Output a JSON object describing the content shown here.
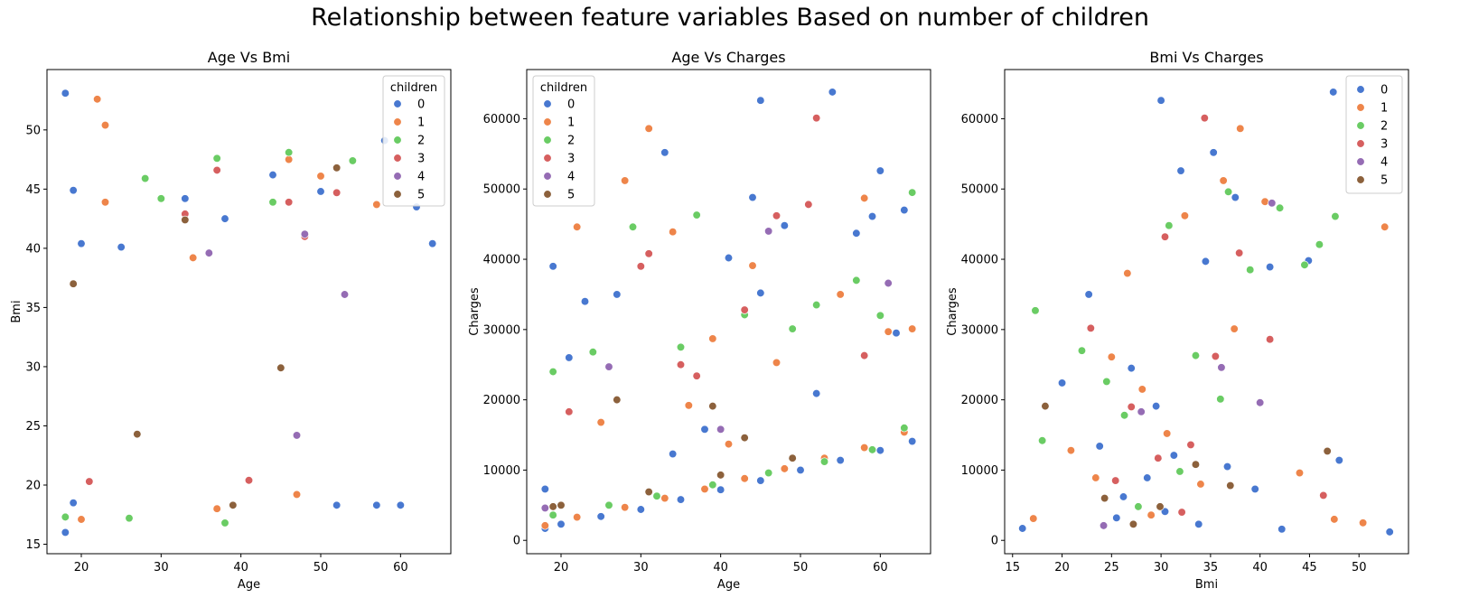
{
  "suptitle": "Relationship between feature variables Based on number of children",
  "hue_colors": {
    "0": "#4878d0",
    "1": "#ee854a",
    "2": "#6acc64",
    "3": "#d65f5f",
    "4": "#956cb4",
    "5": "#8c613c"
  },
  "chart_data": [
    {
      "type": "scatter",
      "title": "Age Vs Bmi",
      "xlabel": "Age",
      "ylabel": "Bmi",
      "xlim": [
        15.7,
        66.3
      ],
      "ylim": [
        14.2,
        55.1
      ],
      "xticks": [
        20,
        30,
        40,
        50,
        60
      ],
      "yticks": [
        15,
        20,
        25,
        30,
        35,
        40,
        45,
        50
      ],
      "legend": {
        "title": "children",
        "position": "top-right",
        "entries": [
          "0",
          "1",
          "2",
          "3",
          "4",
          "5"
        ]
      },
      "series": [
        {
          "name": "0",
          "points": [
            [
              18,
              53.1
            ],
            [
              19,
              44.9
            ],
            [
              18,
              16.0
            ],
            [
              64,
              40.4
            ],
            [
              60,
              18.3
            ],
            [
              52,
              18.3
            ],
            [
              58,
              49.1
            ],
            [
              44,
              46.2
            ],
            [
              50,
              44.8
            ],
            [
              62,
              43.5
            ],
            [
              57,
              18.3
            ],
            [
              20,
              40.4
            ],
            [
              25,
              40.1
            ],
            [
              19,
              18.5
            ],
            [
              33,
              44.2
            ],
            [
              38,
              42.5
            ]
          ]
        },
        {
          "name": "1",
          "points": [
            [
              22,
              52.6
            ],
            [
              23,
              50.4
            ],
            [
              20,
              17.1
            ],
            [
              47,
              19.2
            ],
            [
              46,
              47.5
            ],
            [
              50,
              46.1
            ],
            [
              57,
              43.7
            ],
            [
              37,
              18.0
            ],
            [
              23,
              43.9
            ],
            [
              34,
              39.2
            ]
          ]
        },
        {
          "name": "2",
          "points": [
            [
              18,
              17.3
            ],
            [
              37,
              47.6
            ],
            [
              46,
              48.1
            ],
            [
              54,
              47.4
            ],
            [
              38,
              16.8
            ],
            [
              28,
              45.9
            ],
            [
              30,
              44.2
            ],
            [
              44,
              43.9
            ],
            [
              26,
              17.2
            ]
          ]
        },
        {
          "name": "3",
          "points": [
            [
              37,
              46.6
            ],
            [
              33,
              42.9
            ],
            [
              46,
              43.9
            ],
            [
              52,
              44.7
            ],
            [
              21,
              20.3
            ],
            [
              41,
              20.4
            ],
            [
              48,
              41.0
            ]
          ]
        },
        {
          "name": "4",
          "points": [
            [
              36,
              39.6
            ],
            [
              48,
              41.2
            ],
            [
              53,
              36.1
            ],
            [
              47,
              24.2
            ]
          ]
        },
        {
          "name": "5",
          "points": [
            [
              52,
              46.8
            ],
            [
              39,
              18.3
            ],
            [
              33,
              42.4
            ],
            [
              19,
              37.0
            ],
            [
              27,
              24.3
            ],
            [
              45,
              29.9
            ]
          ]
        }
      ]
    },
    {
      "type": "scatter",
      "title": "Age Vs Charges",
      "xlabel": "Age",
      "ylabel": "Charges",
      "xlim": [
        15.7,
        66.3
      ],
      "ylim": [
        -1900,
        67000
      ],
      "xticks": [
        20,
        30,
        40,
        50,
        60
      ],
      "yticks": [
        0,
        10000,
        20000,
        30000,
        40000,
        50000,
        60000
      ],
      "legend": {
        "title": "children",
        "position": "top-left",
        "entries": [
          "0",
          "1",
          "2",
          "3",
          "4",
          "5"
        ]
      },
      "series": [
        {
          "name": "0",
          "points": [
            [
              18,
              1700
            ],
            [
              20,
              2300
            ],
            [
              25,
              3400
            ],
            [
              30,
              4400
            ],
            [
              35,
              5800
            ],
            [
              40,
              7200
            ],
            [
              45,
              8500
            ],
            [
              50,
              10000
            ],
            [
              55,
              11400
            ],
            [
              60,
              12800
            ],
            [
              64,
              14100
            ],
            [
              18,
              7300
            ],
            [
              19,
              39000
            ],
            [
              23,
              34000
            ],
            [
              33,
              55200
            ],
            [
              45,
              62600
            ],
            [
              54,
              63800
            ],
            [
              60,
              52600
            ],
            [
              48,
              44800
            ],
            [
              44,
              48800
            ],
            [
              63,
              47000
            ],
            [
              41,
              40200
            ],
            [
              21,
              26000
            ],
            [
              27,
              35000
            ],
            [
              57,
              43700
            ],
            [
              62,
              29500
            ],
            [
              38,
              15800
            ],
            [
              45,
              35200
            ],
            [
              52,
              20900
            ],
            [
              34,
              12300
            ],
            [
              59,
              46100
            ]
          ]
        },
        {
          "name": "1",
          "points": [
            [
              18,
              2100
            ],
            [
              22,
              3300
            ],
            [
              28,
              4700
            ],
            [
              33,
              6000
            ],
            [
              38,
              7300
            ],
            [
              43,
              8800
            ],
            [
              48,
              10200
            ],
            [
              53,
              11700
            ],
            [
              58,
              13200
            ],
            [
              63,
              15400
            ],
            [
              31,
              58600
            ],
            [
              28,
              51200
            ],
            [
              22,
              44600
            ],
            [
              34,
              43900
            ],
            [
              58,
              48700
            ],
            [
              61,
              29700
            ],
            [
              47,
              25300
            ],
            [
              41,
              13700
            ],
            [
              25,
              16800
            ],
            [
              36,
              19200
            ],
            [
              64,
              30100
            ],
            [
              55,
              35000
            ],
            [
              44,
              39100
            ],
            [
              39,
              28700
            ]
          ]
        },
        {
          "name": "2",
          "points": [
            [
              19,
              3600
            ],
            [
              26,
              5000
            ],
            [
              32,
              6300
            ],
            [
              39,
              7900
            ],
            [
              46,
              9600
            ],
            [
              53,
              11200
            ],
            [
              59,
              12900
            ],
            [
              63,
              16000
            ],
            [
              29,
              44600
            ],
            [
              37,
              46300
            ],
            [
              64,
              49500
            ],
            [
              57,
              37000
            ],
            [
              49,
              30100
            ],
            [
              52,
              33500
            ],
            [
              19,
              24000
            ],
            [
              35,
              27500
            ],
            [
              43,
              32100
            ],
            [
              24,
              26800
            ],
            [
              60,
              32000
            ]
          ]
        },
        {
          "name": "3",
          "points": [
            [
              52,
              60100
            ],
            [
              31,
              40800
            ],
            [
              47,
              46200
            ],
            [
              21,
              18300
            ],
            [
              35,
              25000
            ],
            [
              43,
              32800
            ],
            [
              58,
              26300
            ],
            [
              30,
              39000
            ],
            [
              51,
              47800
            ],
            [
              37,
              23400
            ]
          ]
        },
        {
          "name": "4",
          "points": [
            [
              18,
              4600
            ],
            [
              40,
              15800
            ],
            [
              61,
              36600
            ],
            [
              46,
              44000
            ],
            [
              26,
              24700
            ]
          ]
        },
        {
          "name": "5",
          "points": [
            [
              19,
              4800
            ],
            [
              20,
              5000
            ],
            [
              31,
              6900
            ],
            [
              40,
              9300
            ],
            [
              43,
              14600
            ],
            [
              49,
              11700
            ],
            [
              39,
              19100
            ],
            [
              27,
              20000
            ]
          ]
        }
      ]
    },
    {
      "type": "scatter",
      "title": "Bmi Vs Charges",
      "xlabel": "Bmi",
      "ylabel": "Charges",
      "xlim": [
        14.2,
        55.0
      ],
      "ylim": [
        -1900,
        67000
      ],
      "xticks": [
        15,
        20,
        25,
        30,
        35,
        40,
        45,
        50
      ],
      "yticks": [
        0,
        10000,
        20000,
        30000,
        40000,
        50000,
        60000
      ],
      "legend": {
        "title": "",
        "position": "top-right",
        "entries": [
          "0",
          "1",
          "2",
          "3",
          "4",
          "5"
        ]
      },
      "series": [
        {
          "name": "0",
          "points": [
            [
              16.0,
              1700
            ],
            [
              53.1,
              1200
            ],
            [
              30.0,
              62600
            ],
            [
              47.4,
              63800
            ],
            [
              35.3,
              55200
            ],
            [
              32.0,
              52600
            ],
            [
              20.0,
              22400
            ],
            [
              22.7,
              35000
            ],
            [
              25.5,
              3200
            ],
            [
              28.6,
              8900
            ],
            [
              31.3,
              12100
            ],
            [
              33.8,
              2300
            ],
            [
              36.7,
              10500
            ],
            [
              39.5,
              7300
            ],
            [
              42.2,
              1600
            ],
            [
              44.9,
              39800
            ],
            [
              48.0,
              11400
            ],
            [
              27.0,
              24500
            ],
            [
              34.5,
              39700
            ],
            [
              30.4,
              4100
            ],
            [
              23.8,
              13400
            ],
            [
              37.5,
              48800
            ],
            [
              41.0,
              38900
            ],
            [
              26.2,
              6200
            ],
            [
              29.5,
              19100
            ]
          ]
        },
        {
          "name": "1",
          "points": [
            [
              52.6,
              44600
            ],
            [
              50.4,
              2500
            ],
            [
              38.0,
              58600
            ],
            [
              17.1,
              3100
            ],
            [
              23.4,
              8900
            ],
            [
              26.6,
              38000
            ],
            [
              29.0,
              3600
            ],
            [
              32.4,
              46200
            ],
            [
              36.3,
              51200
            ],
            [
              40.5,
              48200
            ],
            [
              44.0,
              9600
            ],
            [
              47.5,
              3000
            ],
            [
              20.9,
              12800
            ],
            [
              25.0,
              26100
            ],
            [
              30.6,
              15200
            ],
            [
              34.0,
              8000
            ],
            [
              37.4,
              30100
            ],
            [
              28.1,
              21500
            ]
          ]
        },
        {
          "name": "2",
          "points": [
            [
              17.3,
              32700
            ],
            [
              47.6,
              46100
            ],
            [
              46.0,
              42100
            ],
            [
              36.8,
              49600
            ],
            [
              42.0,
              47300
            ],
            [
              18.0,
              14200
            ],
            [
              22.0,
              27000
            ],
            [
              24.5,
              22600
            ],
            [
              27.7,
              4800
            ],
            [
              30.8,
              44800
            ],
            [
              33.5,
              26300
            ],
            [
              36.0,
              20100
            ],
            [
              39.0,
              38500
            ],
            [
              44.5,
              39200
            ],
            [
              31.9,
              9800
            ],
            [
              26.3,
              17800
            ]
          ]
        },
        {
          "name": "3",
          "points": [
            [
              34.4,
              60100
            ],
            [
              22.9,
              30200
            ],
            [
              27.0,
              19000
            ],
            [
              29.7,
              11700
            ],
            [
              32.1,
              4000
            ],
            [
              35.5,
              26200
            ],
            [
              37.9,
              40900
            ],
            [
              41.0,
              28600
            ],
            [
              46.4,
              6400
            ],
            [
              25.4,
              8500
            ],
            [
              33.0,
              13600
            ],
            [
              30.4,
              43200
            ]
          ]
        },
        {
          "name": "4",
          "points": [
            [
              40.0,
              19600
            ],
            [
              36.1,
              24600
            ],
            [
              24.2,
              2100
            ],
            [
              41.2,
              48000
            ],
            [
              28.0,
              18300
            ]
          ]
        },
        {
          "name": "5",
          "points": [
            [
              18.3,
              19100
            ],
            [
              46.8,
              12700
            ],
            [
              24.3,
              6000
            ],
            [
              29.9,
              4800
            ],
            [
              37.0,
              7800
            ],
            [
              33.5,
              10800
            ],
            [
              27.2,
              2300
            ]
          ]
        }
      ]
    }
  ]
}
